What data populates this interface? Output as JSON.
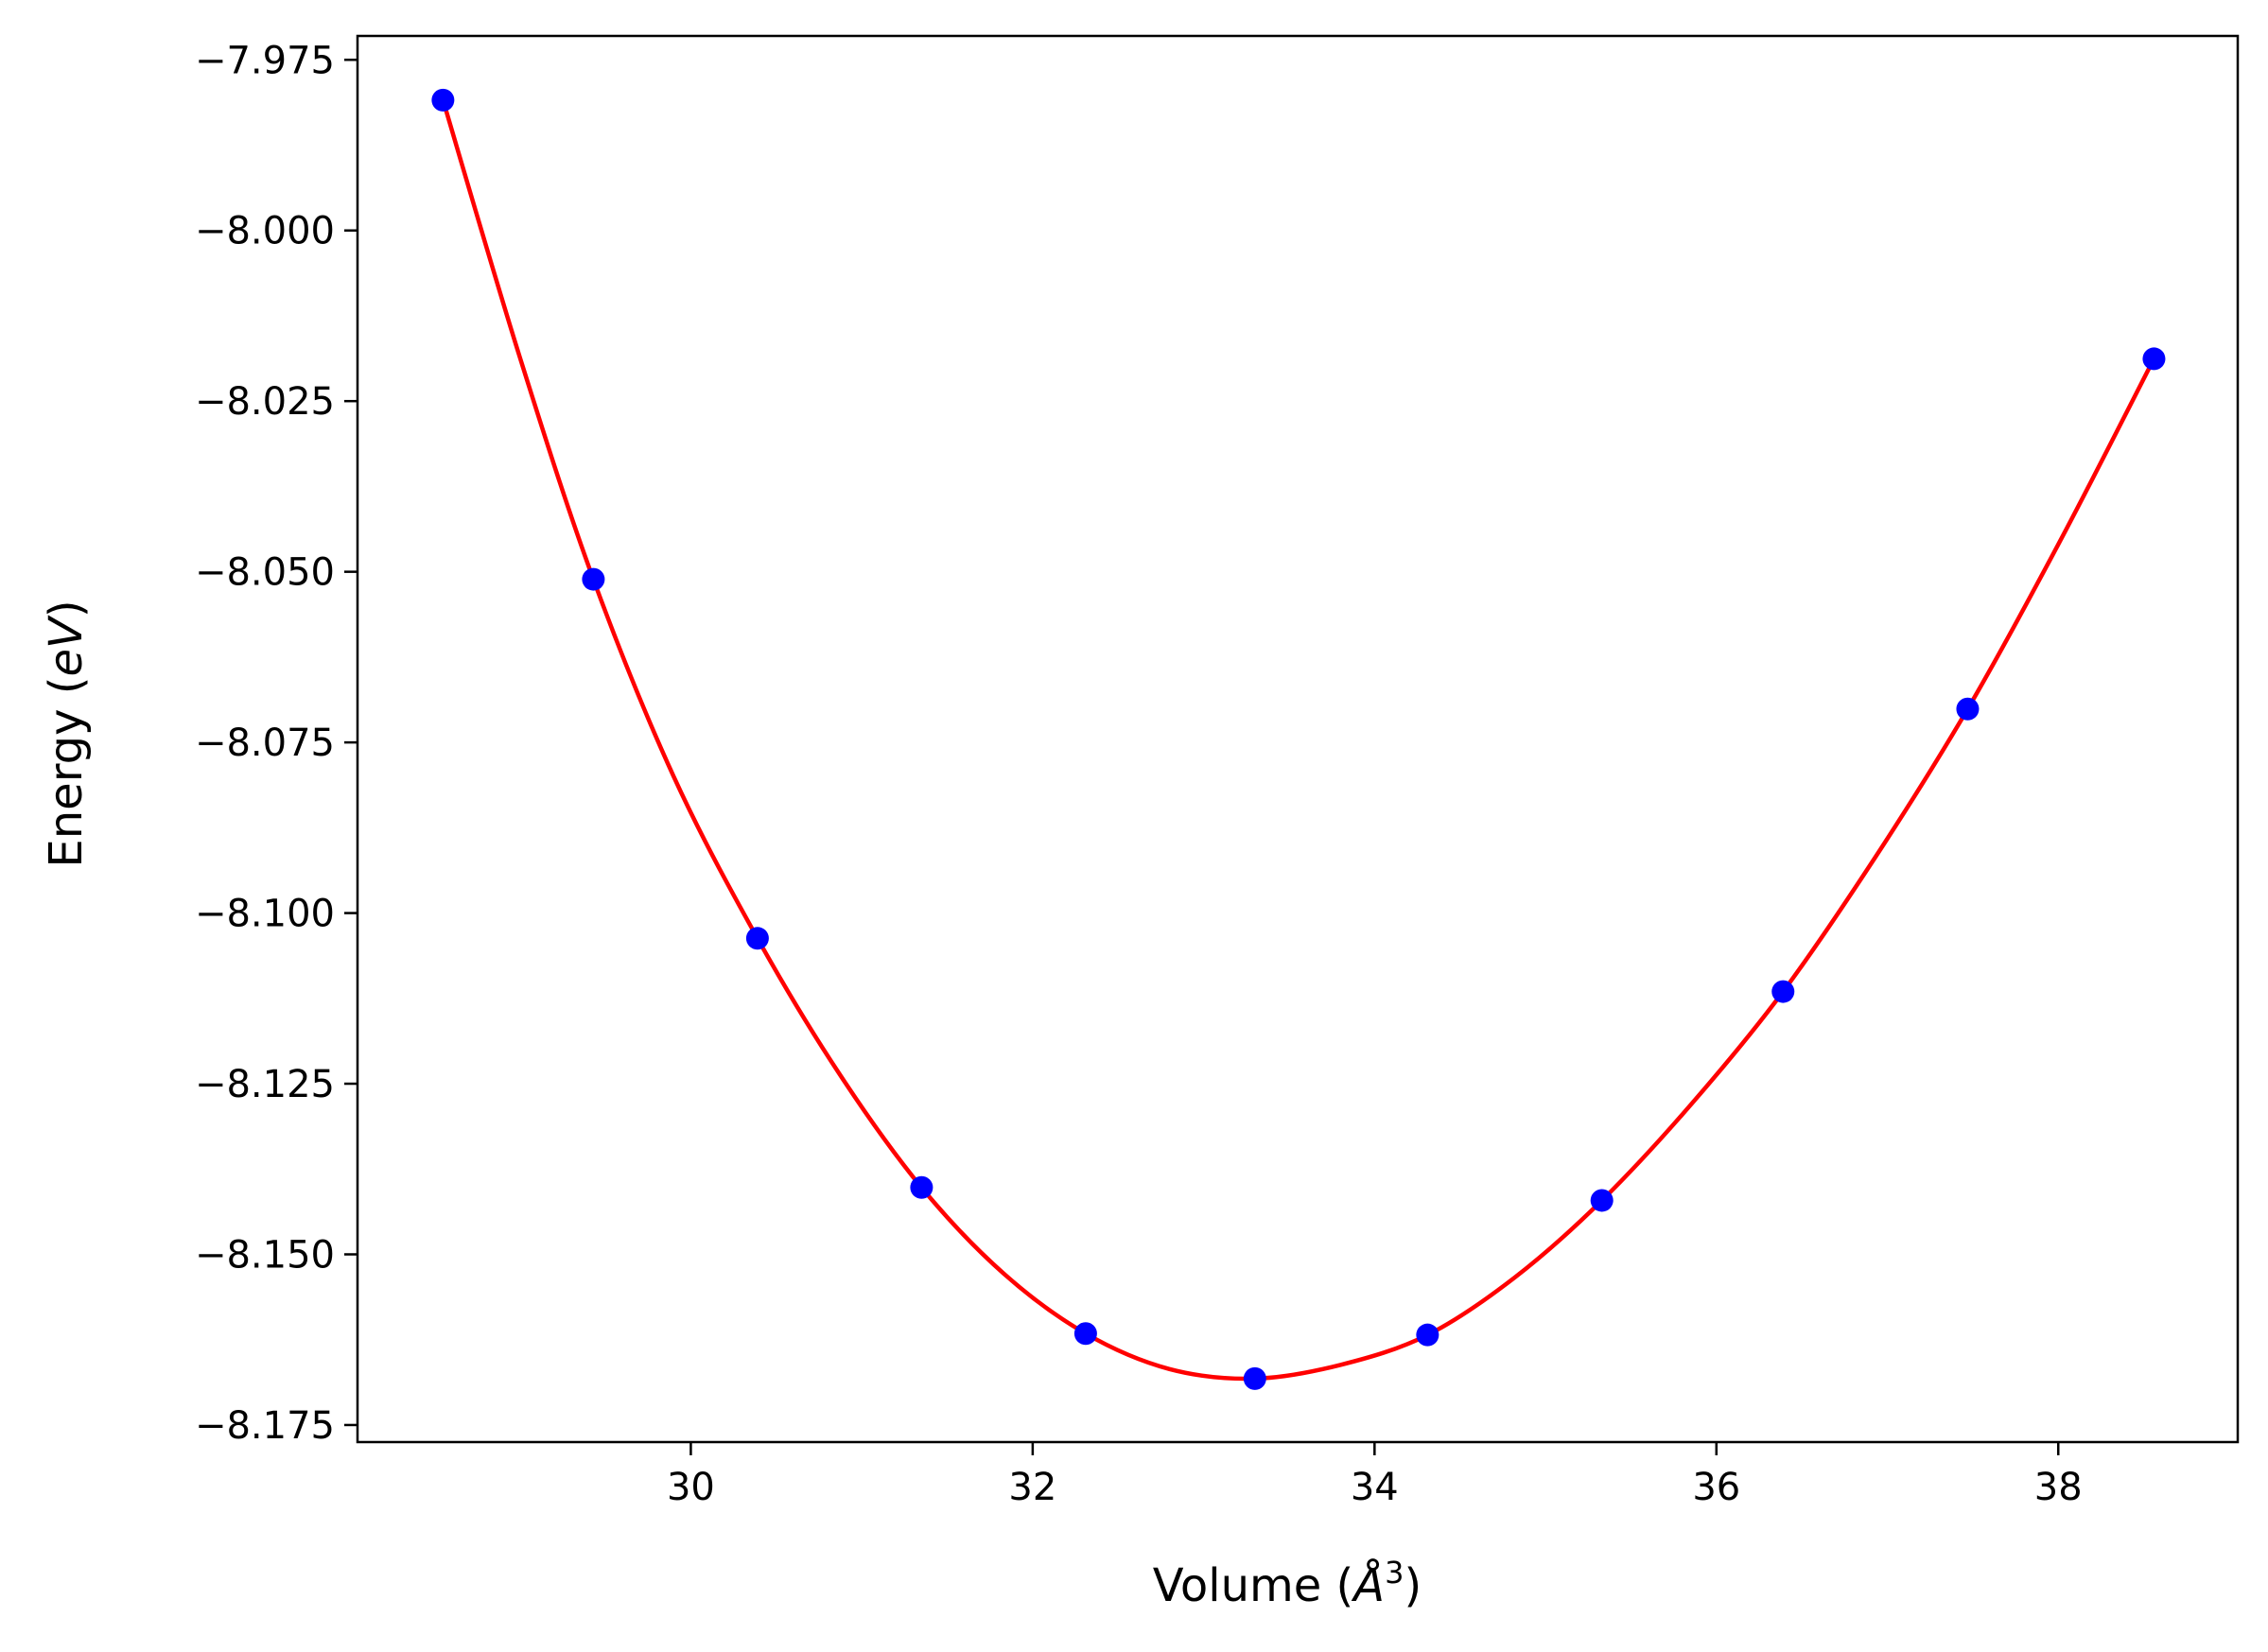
{
  "chart_data": {
    "type": "line",
    "title": "",
    "xlabel": "Volume (Å³)",
    "xlabel_parts": {
      "prefix": "Volume (",
      "unit_symbol": "Å",
      "exponent": "3",
      "suffix": ")"
    },
    "ylabel": "Energy (eV)",
    "ylabel_parts": {
      "prefix": "Energy (",
      "unit": "eV",
      "suffix": ")"
    },
    "xlim": [
      28.05,
      39.05
    ],
    "ylim": [
      -8.1775,
      -7.9715
    ],
    "xticks": [
      30,
      32,
      34,
      36,
      38
    ],
    "xtick_labels": [
      "30",
      "32",
      "34",
      "36",
      "38"
    ],
    "yticks": [
      -7.975,
      -8.0,
      -8.025,
      -8.05,
      -8.075,
      -8.1,
      -8.125,
      -8.15,
      -8.175
    ],
    "ytick_labels": [
      "−7.975",
      "−8.000",
      "−8.025",
      "−8.050",
      "−8.075",
      "−8.100",
      "−8.125",
      "−8.150",
      "−8.175"
    ],
    "grid": false,
    "series": [
      {
        "kind": "scatter",
        "color": "#0000ff",
        "points": [
          {
            "x": 28.55,
            "y": -7.9809
          },
          {
            "x": 29.43,
            "y": -8.0511
          },
          {
            "x": 30.39,
            "y": -8.1037
          },
          {
            "x": 31.35,
            "y": -8.1402
          },
          {
            "x": 32.31,
            "y": -8.1616
          },
          {
            "x": 33.3,
            "y": -8.1682
          },
          {
            "x": 34.31,
            "y": -8.1618
          },
          {
            "x": 35.33,
            "y": -8.1421
          },
          {
            "x": 36.39,
            "y": -8.1115
          },
          {
            "x": 37.47,
            "y": -8.0701
          },
          {
            "x": 38.56,
            "y": -8.0188
          }
        ]
      },
      {
        "kind": "line",
        "color": "#ff0000",
        "points": [
          {
            "x": 28.55,
            "y": -7.9809
          },
          {
            "x": 29.0,
            "y": -8.0186
          },
          {
            "x": 29.43,
            "y": -8.0511
          },
          {
            "x": 29.9,
            "y": -8.08
          },
          {
            "x": 30.39,
            "y": -8.1037
          },
          {
            "x": 30.87,
            "y": -8.1236
          },
          {
            "x": 31.35,
            "y": -8.1402
          },
          {
            "x": 31.83,
            "y": -8.1528
          },
          {
            "x": 32.31,
            "y": -8.1616
          },
          {
            "x": 32.8,
            "y": -8.1668
          },
          {
            "x": 33.3,
            "y": -8.1682
          },
          {
            "x": 33.8,
            "y": -8.1662
          },
          {
            "x": 34.31,
            "y": -8.1618
          },
          {
            "x": 34.82,
            "y": -8.1534
          },
          {
            "x": 35.33,
            "y": -8.1421
          },
          {
            "x": 35.86,
            "y": -8.1278
          },
          {
            "x": 36.39,
            "y": -8.1115
          },
          {
            "x": 36.93,
            "y": -8.0918
          },
          {
            "x": 37.47,
            "y": -8.0701
          },
          {
            "x": 38.0,
            "y": -8.046
          },
          {
            "x": 38.56,
            "y": -8.0188
          }
        ]
      }
    ]
  }
}
